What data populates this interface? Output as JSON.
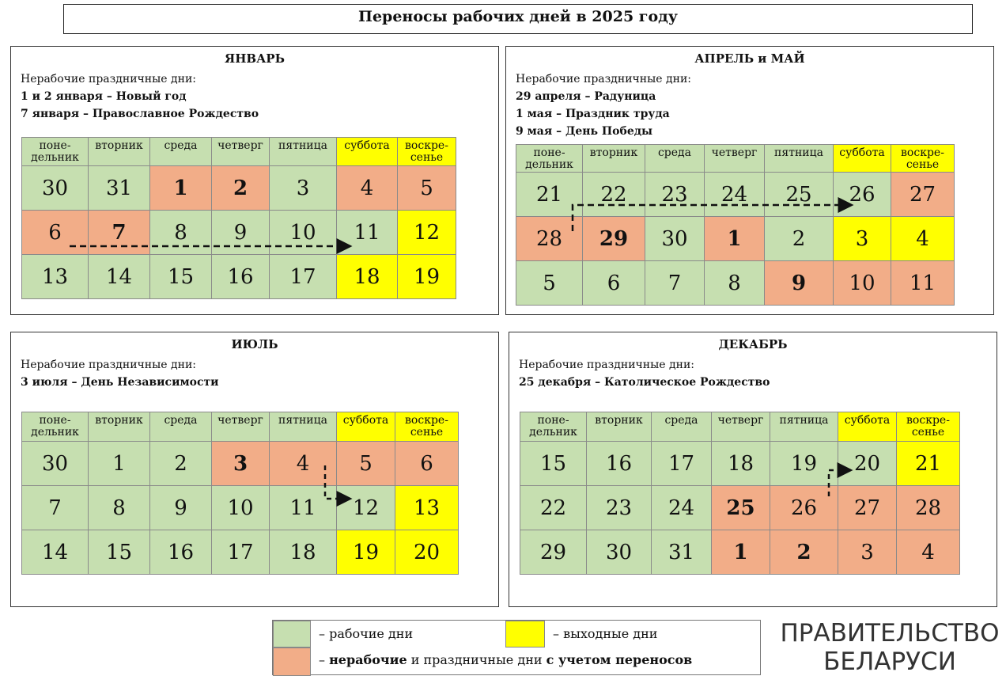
{
  "title": "Переносы рабочих дней в 2025 году",
  "holidays_label": "Нерабочие праздничные дни:",
  "colors": {
    "working": "#c6dfb0",
    "weekend": "#ffff00",
    "nonworking": "#f2ad88"
  },
  "panels": [
    {
      "name": "january",
      "header": "ЯНВАРЬ",
      "holidays": [
        "1 и 2 января – Новый год",
        "7 января – Православное Рождество"
      ],
      "weekdays": [
        "поне-\nдельник",
        "вторник",
        "среда",
        "четверг",
        "пятница",
        "суббота",
        "воскре-\nсенье"
      ],
      "weeks": [
        [
          {
            "d": "30",
            "t": "g"
          },
          {
            "d": "31",
            "t": "g"
          },
          {
            "d": "1",
            "t": "o",
            "b": 1
          },
          {
            "d": "2",
            "t": "o",
            "b": 1
          },
          {
            "d": "3",
            "t": "g"
          },
          {
            "d": "4",
            "t": "o"
          },
          {
            "d": "5",
            "t": "o"
          }
        ],
        [
          {
            "d": "6",
            "t": "o"
          },
          {
            "d": "7",
            "t": "o",
            "b": 1
          },
          {
            "d": "8",
            "t": "g"
          },
          {
            "d": "9",
            "t": "g"
          },
          {
            "d": "10",
            "t": "g"
          },
          {
            "d": "11",
            "t": "g"
          },
          {
            "d": "12",
            "t": "y"
          }
        ],
        [
          {
            "d": "13",
            "t": "g"
          },
          {
            "d": "14",
            "t": "g"
          },
          {
            "d": "15",
            "t": "g"
          },
          {
            "d": "16",
            "t": "g"
          },
          {
            "d": "17",
            "t": "g"
          },
          {
            "d": "18",
            "t": "y"
          },
          {
            "d": "19",
            "t": "y"
          }
        ]
      ]
    },
    {
      "name": "april-may",
      "header": "АПРЕЛЬ и МАЙ",
      "holidays": [
        "29 апреля – Радуница",
        "1 мая – Праздник труда",
        "9 мая – День Победы"
      ],
      "weekdays": [
        "поне-\nдельник",
        "вторник",
        "среда",
        "четверг",
        "пятница",
        "суббота",
        "воскре-\nсенье"
      ],
      "weeks": [
        [
          {
            "d": "21",
            "t": "g"
          },
          {
            "d": "22",
            "t": "g"
          },
          {
            "d": "23",
            "t": "g"
          },
          {
            "d": "24",
            "t": "g"
          },
          {
            "d": "25",
            "t": "g"
          },
          {
            "d": "26",
            "t": "g"
          },
          {
            "d": "27",
            "t": "o"
          }
        ],
        [
          {
            "d": "28",
            "t": "o"
          },
          {
            "d": "29",
            "t": "o",
            "b": 1
          },
          {
            "d": "30",
            "t": "g"
          },
          {
            "d": "1",
            "t": "o",
            "b": 1
          },
          {
            "d": "2",
            "t": "g"
          },
          {
            "d": "3",
            "t": "y"
          },
          {
            "d": "4",
            "t": "y"
          }
        ],
        [
          {
            "d": "5",
            "t": "g"
          },
          {
            "d": "6",
            "t": "g"
          },
          {
            "d": "7",
            "t": "g"
          },
          {
            "d": "8",
            "t": "g"
          },
          {
            "d": "9",
            "t": "o",
            "b": 1
          },
          {
            "d": "10",
            "t": "o"
          },
          {
            "d": "11",
            "t": "o"
          }
        ]
      ]
    },
    {
      "name": "july",
      "header": "ИЮЛЬ",
      "holidays": [
        "3 июля – День Независимости"
      ],
      "weekdays": [
        "поне-\nдельник",
        "вторник",
        "среда",
        "четверг",
        "пятница",
        "суббота",
        "воскре-\nсенье"
      ],
      "weeks": [
        [
          {
            "d": "30",
            "t": "g"
          },
          {
            "d": "1",
            "t": "g"
          },
          {
            "d": "2",
            "t": "g"
          },
          {
            "d": "3",
            "t": "o",
            "b": 1
          },
          {
            "d": "4",
            "t": "o"
          },
          {
            "d": "5",
            "t": "o"
          },
          {
            "d": "6",
            "t": "o"
          }
        ],
        [
          {
            "d": "7",
            "t": "g"
          },
          {
            "d": "8",
            "t": "g"
          },
          {
            "d": "9",
            "t": "g"
          },
          {
            "d": "10",
            "t": "g"
          },
          {
            "d": "11",
            "t": "g"
          },
          {
            "d": "12",
            "t": "g"
          },
          {
            "d": "13",
            "t": "y"
          }
        ],
        [
          {
            "d": "14",
            "t": "g"
          },
          {
            "d": "15",
            "t": "g"
          },
          {
            "d": "16",
            "t": "g"
          },
          {
            "d": "17",
            "t": "g"
          },
          {
            "d": "18",
            "t": "g"
          },
          {
            "d": "19",
            "t": "y"
          },
          {
            "d": "20",
            "t": "y"
          }
        ]
      ]
    },
    {
      "name": "december",
      "header": "ДЕКАБРЬ",
      "holidays": [
        "25 декабря – Католическое Рождество"
      ],
      "weekdays": [
        "поне-\nдельник",
        "вторник",
        "среда",
        "четверг",
        "пятница",
        "суббота",
        "воскре-\nсенье"
      ],
      "weeks": [
        [
          {
            "d": "15",
            "t": "g"
          },
          {
            "d": "16",
            "t": "g"
          },
          {
            "d": "17",
            "t": "g"
          },
          {
            "d": "18",
            "t": "g"
          },
          {
            "d": "19",
            "t": "g"
          },
          {
            "d": "20",
            "t": "g"
          },
          {
            "d": "21",
            "t": "y"
          }
        ],
        [
          {
            "d": "22",
            "t": "g"
          },
          {
            "d": "23",
            "t": "g"
          },
          {
            "d": "24",
            "t": "g"
          },
          {
            "d": "25",
            "t": "o",
            "b": 1
          },
          {
            "d": "26",
            "t": "o"
          },
          {
            "d": "27",
            "t": "o"
          },
          {
            "d": "28",
            "t": "o"
          }
        ],
        [
          {
            "d": "29",
            "t": "g"
          },
          {
            "d": "30",
            "t": "g"
          },
          {
            "d": "31",
            "t": "g"
          },
          {
            "d": "1",
            "t": "o",
            "b": 1
          },
          {
            "d": "2",
            "t": "o",
            "b": 1
          },
          {
            "d": "3",
            "t": "o"
          },
          {
            "d": "4",
            "t": "o"
          }
        ]
      ]
    }
  ],
  "legend": {
    "working": "– рабочие дни",
    "weekend": "– выходные дни",
    "nonworking_bold1": "нерабочие",
    "nonworking_mid": " и праздничные дни ",
    "nonworking_bold2": "с учетом переносов",
    "dash": "– "
  },
  "brand": [
    "ПРАВИТЕЛЬСТВО",
    "БЕЛАРУСИ"
  ]
}
